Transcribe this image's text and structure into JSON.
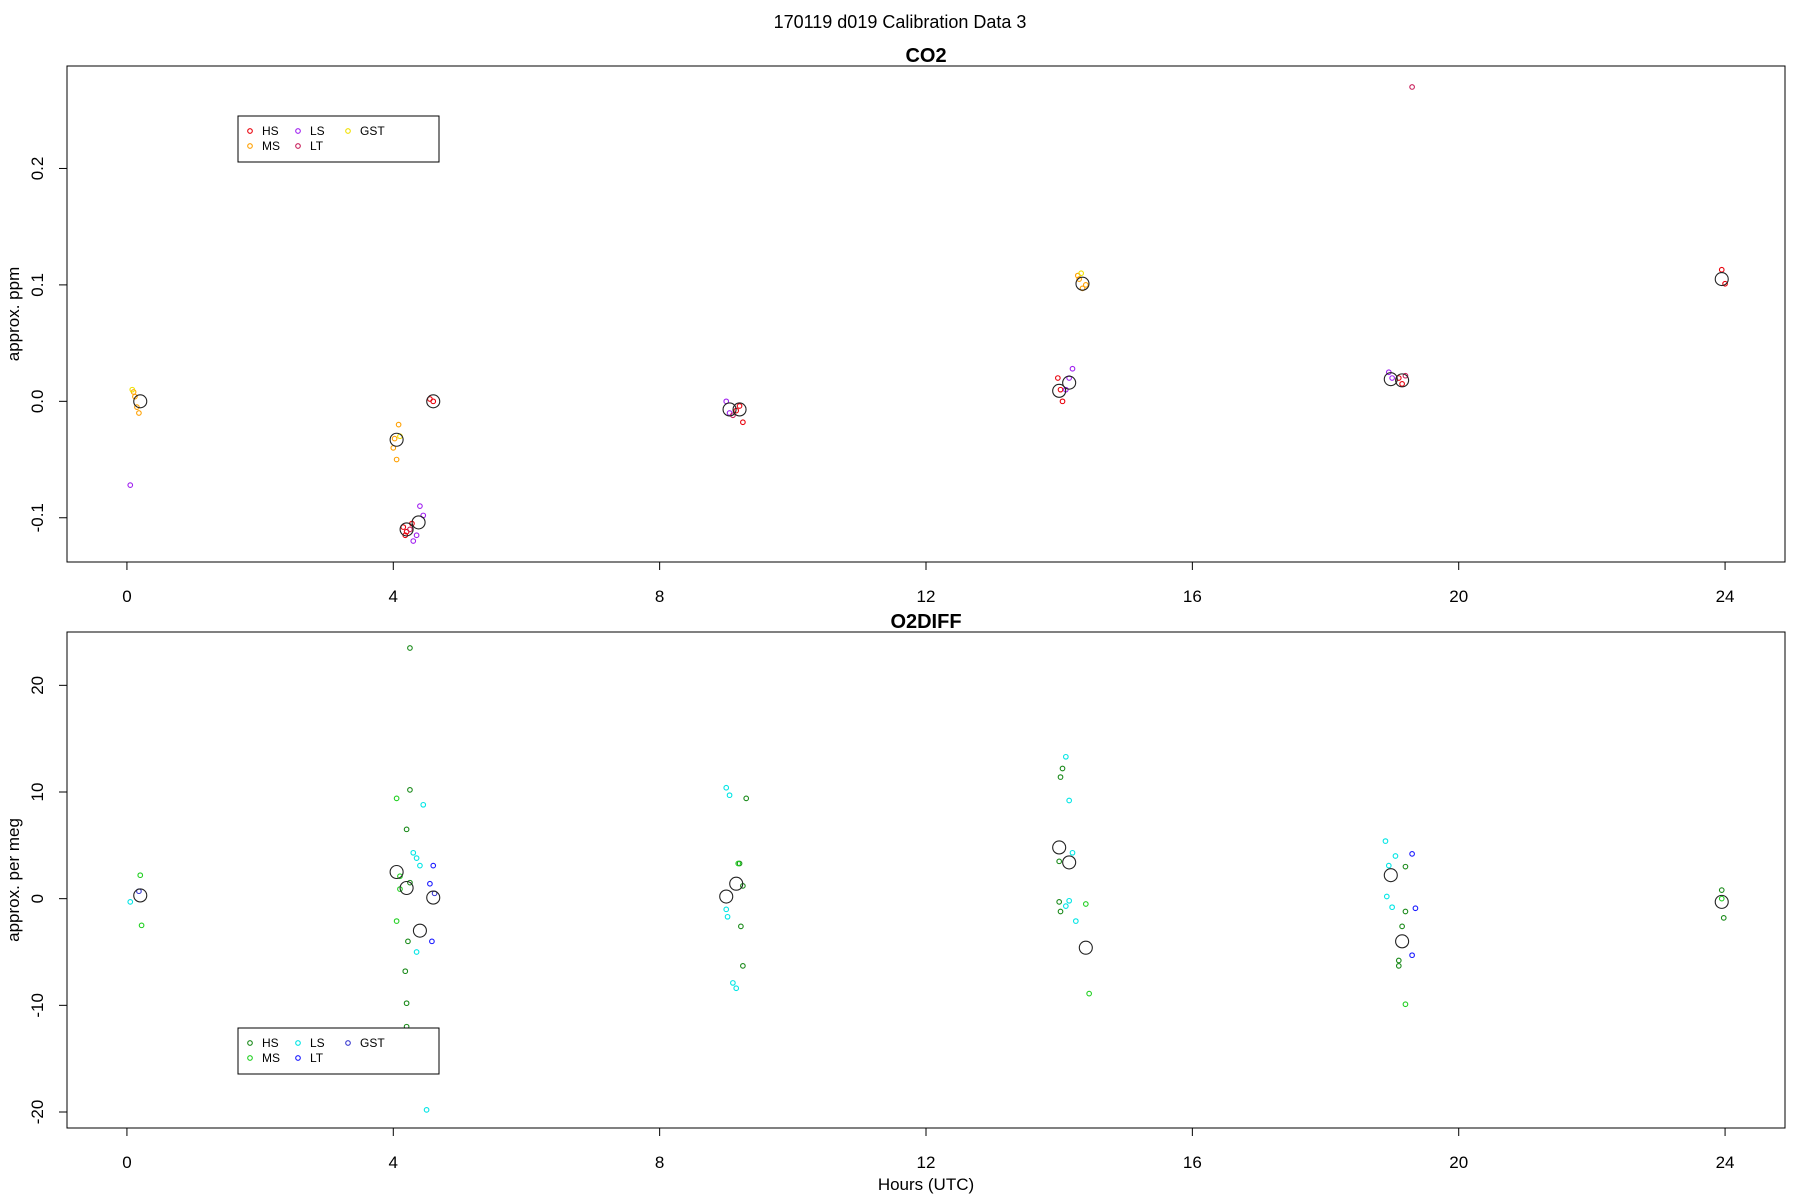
{
  "figure_title": "170119   d019   Calibration Data 3",
  "chart_data": [
    {
      "type": "scatter",
      "title": "CO2",
      "xlabel": "",
      "ylabel": "approx. ppm",
      "xlim": [
        -0.9,
        24.9
      ],
      "ylim": [
        -0.138,
        0.288
      ],
      "xticks": [
        0,
        4,
        8,
        12,
        16,
        20,
        24
      ],
      "yticks": [
        -0.1,
        0.0,
        0.1,
        0.2
      ],
      "ytick_labels": [
        "-0.1",
        "0.0",
        "0.1",
        "0.2"
      ],
      "legend_position": "top-left",
      "series": [
        {
          "name": "HS",
          "color": "#e8000b",
          "points": [
            [
              4.15,
              -0.108
            ],
            [
              4.2,
              -0.112
            ],
            [
              4.28,
              -0.105
            ],
            [
              4.18,
              -0.115
            ],
            [
              4.6,
              0.0
            ],
            [
              4.55,
              0.002
            ],
            [
              9.15,
              -0.008
            ],
            [
              9.2,
              -0.004
            ],
            [
              9.25,
              -0.018
            ],
            [
              13.98,
              0.02
            ],
            [
              14.02,
              0.01
            ],
            [
              14.05,
              0.0
            ],
            [
              19.1,
              0.02
            ],
            [
              19.15,
              0.015
            ],
            [
              23.95,
              0.113
            ],
            [
              24.0,
              0.101
            ]
          ]
        },
        {
          "name": "MS",
          "color": "#ffa000",
          "points": [
            [
              0.1,
              0.008
            ],
            [
              0.15,
              -0.005
            ],
            [
              0.18,
              -0.01
            ],
            [
              0.12,
              0.004
            ],
            [
              4.0,
              -0.04
            ],
            [
              4.05,
              -0.05
            ],
            [
              4.08,
              -0.02
            ],
            [
              4.02,
              -0.032
            ],
            [
              14.3,
              0.105
            ],
            [
              14.35,
              0.097
            ],
            [
              14.4,
              0.1
            ],
            [
              14.28,
              0.108
            ]
          ]
        },
        {
          "name": "LS",
          "color": "#a020f0",
          "points": [
            [
              0.05,
              -0.072
            ],
            [
              4.3,
              -0.12
            ],
            [
              4.35,
              -0.115
            ],
            [
              4.4,
              -0.09
            ],
            [
              4.45,
              -0.098
            ],
            [
              9.0,
              0.0
            ],
            [
              9.05,
              -0.01
            ],
            [
              14.2,
              0.028
            ],
            [
              14.1,
              0.01
            ],
            [
              14.15,
              0.02
            ],
            [
              18.95,
              0.025
            ],
            [
              19.0,
              0.02
            ]
          ]
        },
        {
          "name": "LT",
          "color": "#c81e5a",
          "points": [
            [
              9.1,
              -0.012
            ],
            [
              19.2,
              0.022
            ],
            [
              19.3,
              0.27
            ],
            [
              4.25,
              -0.11
            ]
          ]
        },
        {
          "name": "GST",
          "color": "#f0e000",
          "points": [
            [
              0.08,
              0.01
            ],
            [
              14.33,
              0.11
            ],
            [
              4.1,
              -0.03
            ]
          ]
        }
      ],
      "means": [
        [
          0.2,
          0.0
        ],
        [
          4.05,
          -0.033
        ],
        [
          4.2,
          -0.11
        ],
        [
          4.38,
          -0.104
        ],
        [
          4.6,
          0.0
        ],
        [
          9.05,
          -0.007
        ],
        [
          9.2,
          -0.007
        ],
        [
          14.0,
          0.009
        ],
        [
          14.15,
          0.016
        ],
        [
          14.35,
          0.101
        ],
        [
          18.98,
          0.019
        ],
        [
          19.15,
          0.018
        ],
        [
          23.95,
          0.105
        ]
      ]
    },
    {
      "type": "scatter",
      "title": "O2DIFF",
      "xlabel": "Hours (UTC)",
      "ylabel": "approx. per meg",
      "xlim": [
        -0.9,
        24.9
      ],
      "ylim": [
        -21.5,
        25.0
      ],
      "xticks": [
        0,
        4,
        8,
        12,
        16,
        20,
        24
      ],
      "yticks": [
        -20,
        -10,
        0,
        10,
        20
      ],
      "ytick_labels": [
        "-20",
        "-10",
        "0",
        "10",
        "20"
      ],
      "legend_position": "bottom-left",
      "series": [
        {
          "name": "HS",
          "color": "#1a8a1a",
          "points": [
            [
              4.2,
              6.5
            ],
            [
              4.25,
              10.2
            ],
            [
              4.22,
              -4.0
            ],
            [
              4.18,
              -6.8
            ],
            [
              4.2,
              -9.8
            ],
            [
              4.2,
              -12.0
            ],
            [
              4.25,
              23.5
            ],
            [
              4.25,
              1.5
            ],
            [
              9.2,
              3.3
            ],
            [
              9.22,
              -2.6
            ],
            [
              9.25,
              -6.3
            ],
            [
              9.3,
              9.4
            ],
            [
              9.25,
              1.2
            ],
            [
              14.0,
              3.5
            ],
            [
              14.05,
              12.2
            ],
            [
              14.02,
              11.4
            ],
            [
              14.0,
              -0.3
            ],
            [
              14.02,
              -1.2
            ],
            [
              19.15,
              -2.6
            ],
            [
              19.1,
              -6.3
            ],
            [
              19.2,
              3.0
            ],
            [
              19.1,
              -5.8
            ],
            [
              19.2,
              -1.2
            ],
            [
              23.95,
              0.8
            ],
            [
              23.98,
              -1.8
            ]
          ]
        },
        {
          "name": "MS",
          "color": "#22d022",
          "points": [
            [
              0.2,
              2.2
            ],
            [
              0.22,
              -2.5
            ],
            [
              4.05,
              9.4
            ],
            [
              4.1,
              2.1
            ],
            [
              4.05,
              -2.1
            ],
            [
              4.1,
              0.9
            ],
            [
              9.18,
              3.3
            ],
            [
              14.4,
              -0.5
            ],
            [
              14.45,
              -8.9
            ],
            [
              19.2,
              -9.9
            ],
            [
              23.95,
              0.0
            ]
          ]
        },
        {
          "name": "LS",
          "color": "#00e5e5",
          "points": [
            [
              0.05,
              -0.3
            ],
            [
              4.35,
              3.8
            ],
            [
              4.4,
              3.1
            ],
            [
              4.35,
              -5.0
            ],
            [
              4.45,
              8.8
            ],
            [
              4.5,
              -19.8
            ],
            [
              4.3,
              4.3
            ],
            [
              9.0,
              10.4
            ],
            [
              9.05,
              9.7
            ],
            [
              9.02,
              -1.7
            ],
            [
              9.1,
              -7.9
            ],
            [
              9.15,
              -8.4
            ],
            [
              9.0,
              -1.0
            ],
            [
              14.1,
              13.3
            ],
            [
              14.15,
              9.2
            ],
            [
              14.2,
              4.3
            ],
            [
              14.15,
              -0.2
            ],
            [
              14.25,
              -2.1
            ],
            [
              14.1,
              -0.7
            ],
            [
              18.9,
              5.4
            ],
            [
              18.95,
              3.1
            ],
            [
              18.92,
              0.2
            ],
            [
              19.0,
              -0.8
            ],
            [
              19.05,
              4.0
            ]
          ]
        },
        {
          "name": "LT",
          "color": "#1a1aff",
          "points": [
            [
              4.6,
              3.1
            ],
            [
              4.55,
              1.4
            ],
            [
              4.58,
              -4.0
            ],
            [
              19.3,
              4.2
            ],
            [
              19.35,
              -0.9
            ],
            [
              19.3,
              -5.3
            ]
          ]
        },
        {
          "name": "GST",
          "color": "#3a3ad0",
          "points": [
            [
              0.18,
              0.7
            ],
            [
              4.62,
              0.5
            ]
          ]
        }
      ],
      "means": [
        [
          0.2,
          0.3
        ],
        [
          4.05,
          2.5
        ],
        [
          4.2,
          1.0
        ],
        [
          4.4,
          -3.0
        ],
        [
          4.6,
          0.1
        ],
        [
          9.0,
          0.2
        ],
        [
          9.15,
          1.4
        ],
        [
          14.0,
          4.8
        ],
        [
          14.15,
          3.4
        ],
        [
          14.4,
          -4.6
        ],
        [
          18.98,
          2.2
        ],
        [
          19.15,
          -4.0
        ],
        [
          23.95,
          -0.3
        ]
      ]
    }
  ]
}
